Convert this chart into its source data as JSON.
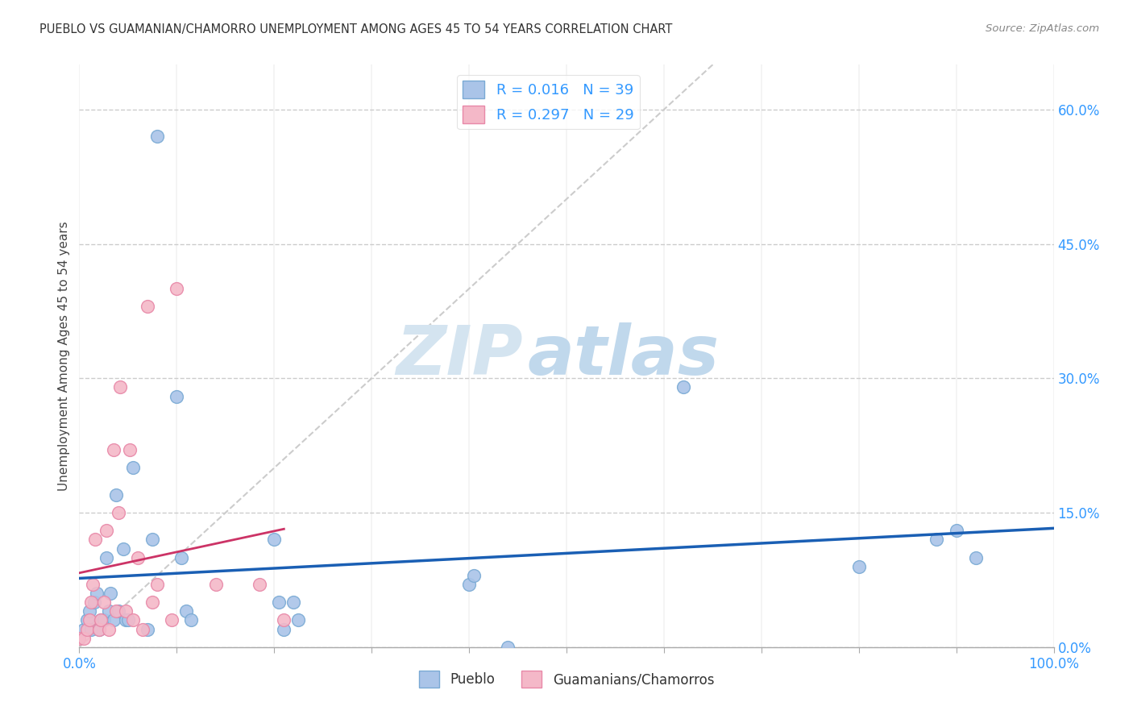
{
  "title": "PUEBLO VS GUAMANIAN/CHAMORRO UNEMPLOYMENT AMONG AGES 45 TO 54 YEARS CORRELATION CHART",
  "source": "Source: ZipAtlas.com",
  "ylabel": "Unemployment Among Ages 45 to 54 years",
  "xlim": [
    0,
    1.0
  ],
  "ylim": [
    0,
    0.65
  ],
  "xticks": [
    0.0,
    0.1,
    0.2,
    0.3,
    0.4,
    0.5,
    0.6,
    0.7,
    0.8,
    0.9,
    1.0
  ],
  "xtick_label_left": "0.0%",
  "xtick_label_right": "100.0%",
  "yticks_right": [
    0.0,
    0.15,
    0.3,
    0.45,
    0.6
  ],
  "yticklabels_right": [
    "0.0%",
    "15.0%",
    "30.0%",
    "45.0%",
    "60.0%"
  ],
  "grid_color": "#cccccc",
  "pueblo_color": "#aac4e8",
  "pueblo_edge_color": "#7aaad4",
  "chamorro_color": "#f4b8c8",
  "chamorro_edge_color": "#e888a8",
  "pueblo_R": 0.016,
  "pueblo_N": 39,
  "chamorro_R": 0.297,
  "chamorro_N": 29,
  "legend_color": "#3399ff",
  "pueblo_trend_color": "#1a5fb4",
  "chamorro_trend_color": "#cc3366",
  "diag_color": "#cccccc",
  "pueblo_x": [
    0.005,
    0.008,
    0.01,
    0.012,
    0.015,
    0.018,
    0.02,
    0.022,
    0.025,
    0.028,
    0.03,
    0.032,
    0.035,
    0.038,
    0.04,
    0.045,
    0.048,
    0.05,
    0.055,
    0.07,
    0.075,
    0.08,
    0.1,
    0.105,
    0.11,
    0.115,
    0.2,
    0.205,
    0.21,
    0.22,
    0.225,
    0.4,
    0.405,
    0.44,
    0.62,
    0.8,
    0.88,
    0.9,
    0.92
  ],
  "pueblo_y": [
    0.02,
    0.03,
    0.04,
    0.02,
    0.05,
    0.06,
    0.02,
    0.03,
    0.03,
    0.1,
    0.04,
    0.06,
    0.03,
    0.17,
    0.04,
    0.11,
    0.03,
    0.03,
    0.2,
    0.02,
    0.12,
    0.57,
    0.28,
    0.1,
    0.04,
    0.03,
    0.12,
    0.05,
    0.02,
    0.05,
    0.03,
    0.07,
    0.08,
    0.0,
    0.29,
    0.09,
    0.12,
    0.13,
    0.1
  ],
  "chamorro_x": [
    0.0,
    0.005,
    0.008,
    0.01,
    0.012,
    0.014,
    0.016,
    0.02,
    0.022,
    0.025,
    0.028,
    0.03,
    0.035,
    0.038,
    0.04,
    0.042,
    0.048,
    0.052,
    0.055,
    0.06,
    0.065,
    0.07,
    0.075,
    0.08,
    0.095,
    0.1,
    0.14,
    0.185,
    0.21
  ],
  "chamorro_y": [
    0.01,
    0.01,
    0.02,
    0.03,
    0.05,
    0.07,
    0.12,
    0.02,
    0.03,
    0.05,
    0.13,
    0.02,
    0.22,
    0.04,
    0.15,
    0.29,
    0.04,
    0.22,
    0.03,
    0.1,
    0.02,
    0.38,
    0.05,
    0.07,
    0.03,
    0.4,
    0.07,
    0.07,
    0.03
  ],
  "watermark_zip": "ZIP",
  "watermark_atlas": "atlas",
  "watermark_color_zip": "#d4e4f0",
  "watermark_color_atlas": "#c0d8ec",
  "marker_size": 130
}
